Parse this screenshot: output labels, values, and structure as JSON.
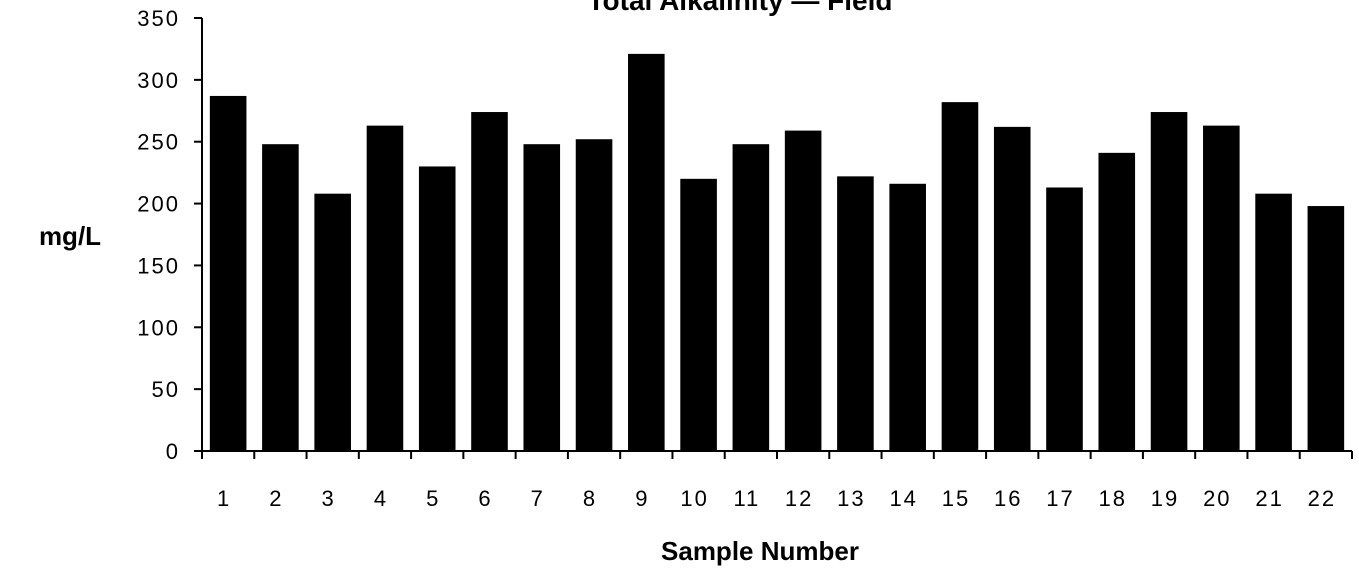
{
  "chart_data": {
    "type": "bar",
    "title": "Total Alkalinity — Field",
    "xlabel": "Sample Number",
    "ylabel": "mg/L",
    "ylim": [
      0,
      350
    ],
    "yticks": [
      0,
      50,
      100,
      150,
      200,
      250,
      300,
      350
    ],
    "grid": false,
    "legend": "none",
    "bar_color": "#000000",
    "categories": [
      "1",
      "2",
      "3",
      "4",
      "5",
      "6",
      "7",
      "8",
      "9",
      "10",
      "11",
      "12",
      "13",
      "14",
      "15",
      "16",
      "17",
      "18",
      "19",
      "20",
      "21",
      "22"
    ],
    "values": [
      287,
      248,
      208,
      263,
      230,
      274,
      248,
      252,
      321,
      220,
      248,
      259,
      222,
      216,
      282,
      262,
      213,
      241,
      274,
      263,
      208,
      198
    ]
  }
}
